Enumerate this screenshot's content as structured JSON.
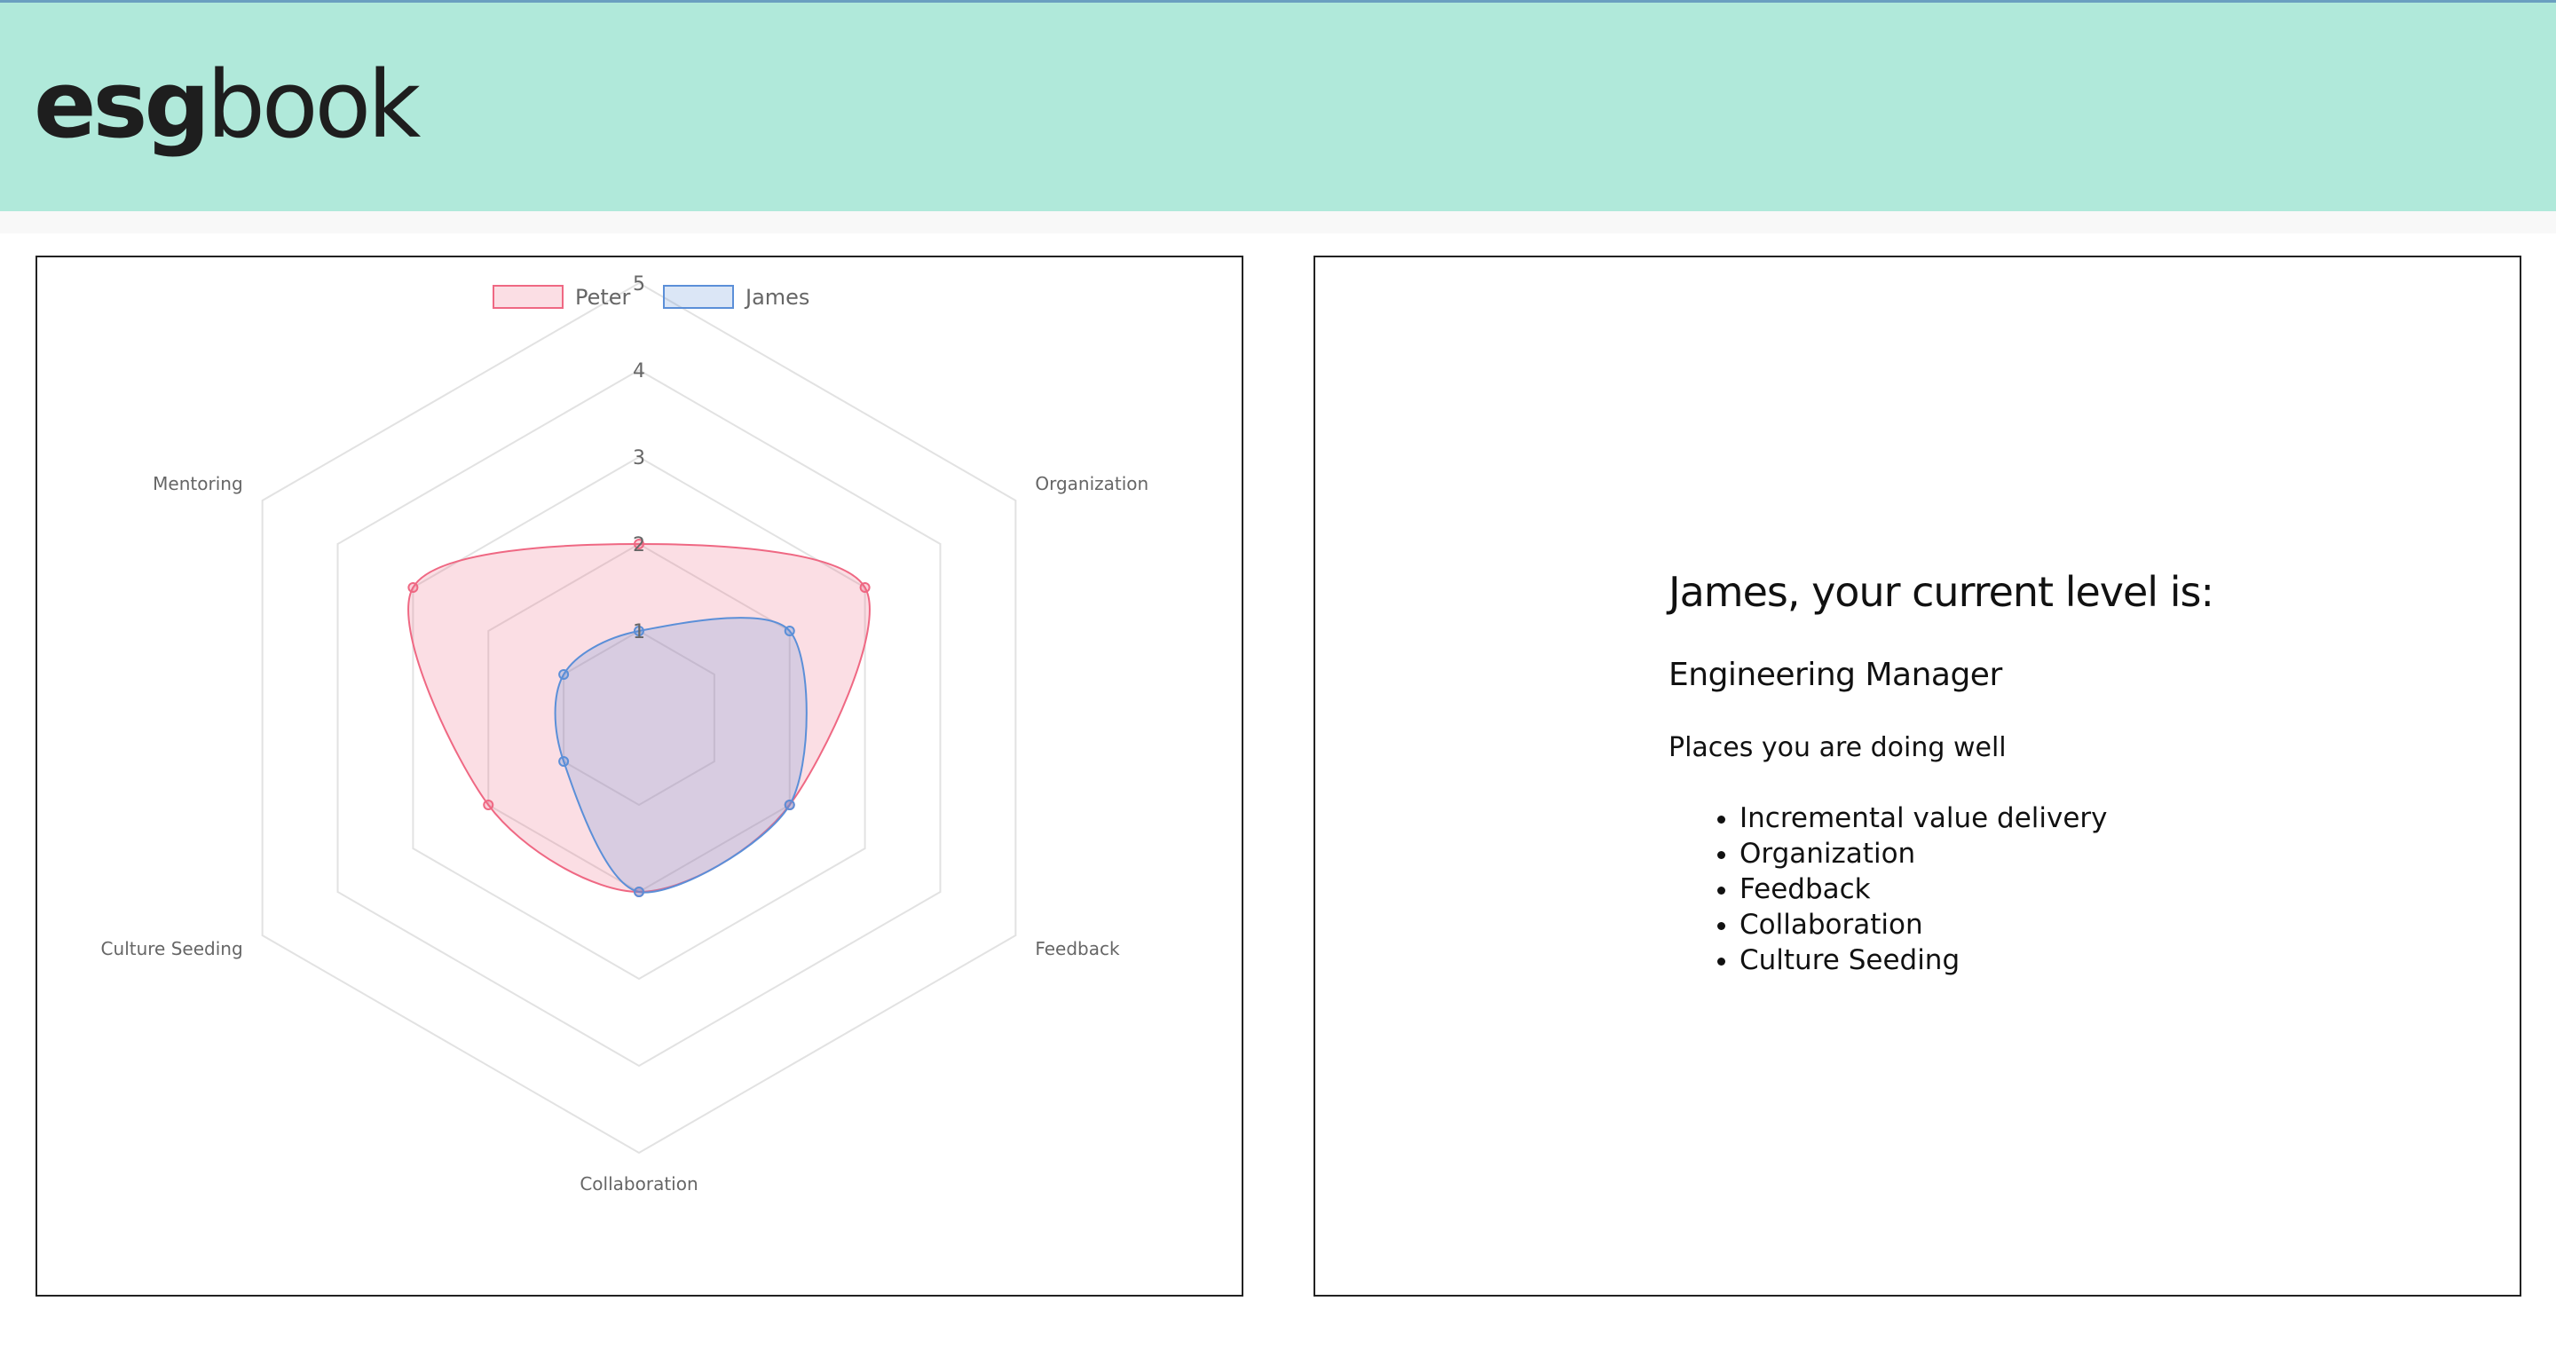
{
  "brand": {
    "logo_bold": "esg",
    "logo_light": "book",
    "header_color": "#b0e9da"
  },
  "chart_data": {
    "type": "radar",
    "labels": [
      "Incremental value delivery",
      "Organization",
      "Feedback",
      "Collaboration",
      "Culture Seeding",
      "Mentoring"
    ],
    "series": [
      {
        "name": "Peter",
        "values": [
          2,
          3,
          2,
          2,
          2,
          3
        ],
        "color": "#ef6883"
      },
      {
        "name": "James",
        "values": [
          1,
          2,
          2,
          2,
          1,
          1
        ],
        "color": "#5b8fd8"
      }
    ],
    "r_range": [
      0,
      5
    ],
    "r_ticks": [
      "1",
      "2",
      "3",
      "4",
      "5"
    ],
    "legend_position": "top",
    "grid": true
  },
  "summary": {
    "heading": "James, your current level is:",
    "level": "Engineering Manager",
    "strengths_heading": "Places you are doing well",
    "strengths": [
      "Incremental value delivery",
      "Organization",
      "Feedback",
      "Collaboration",
      "Culture Seeding"
    ]
  }
}
